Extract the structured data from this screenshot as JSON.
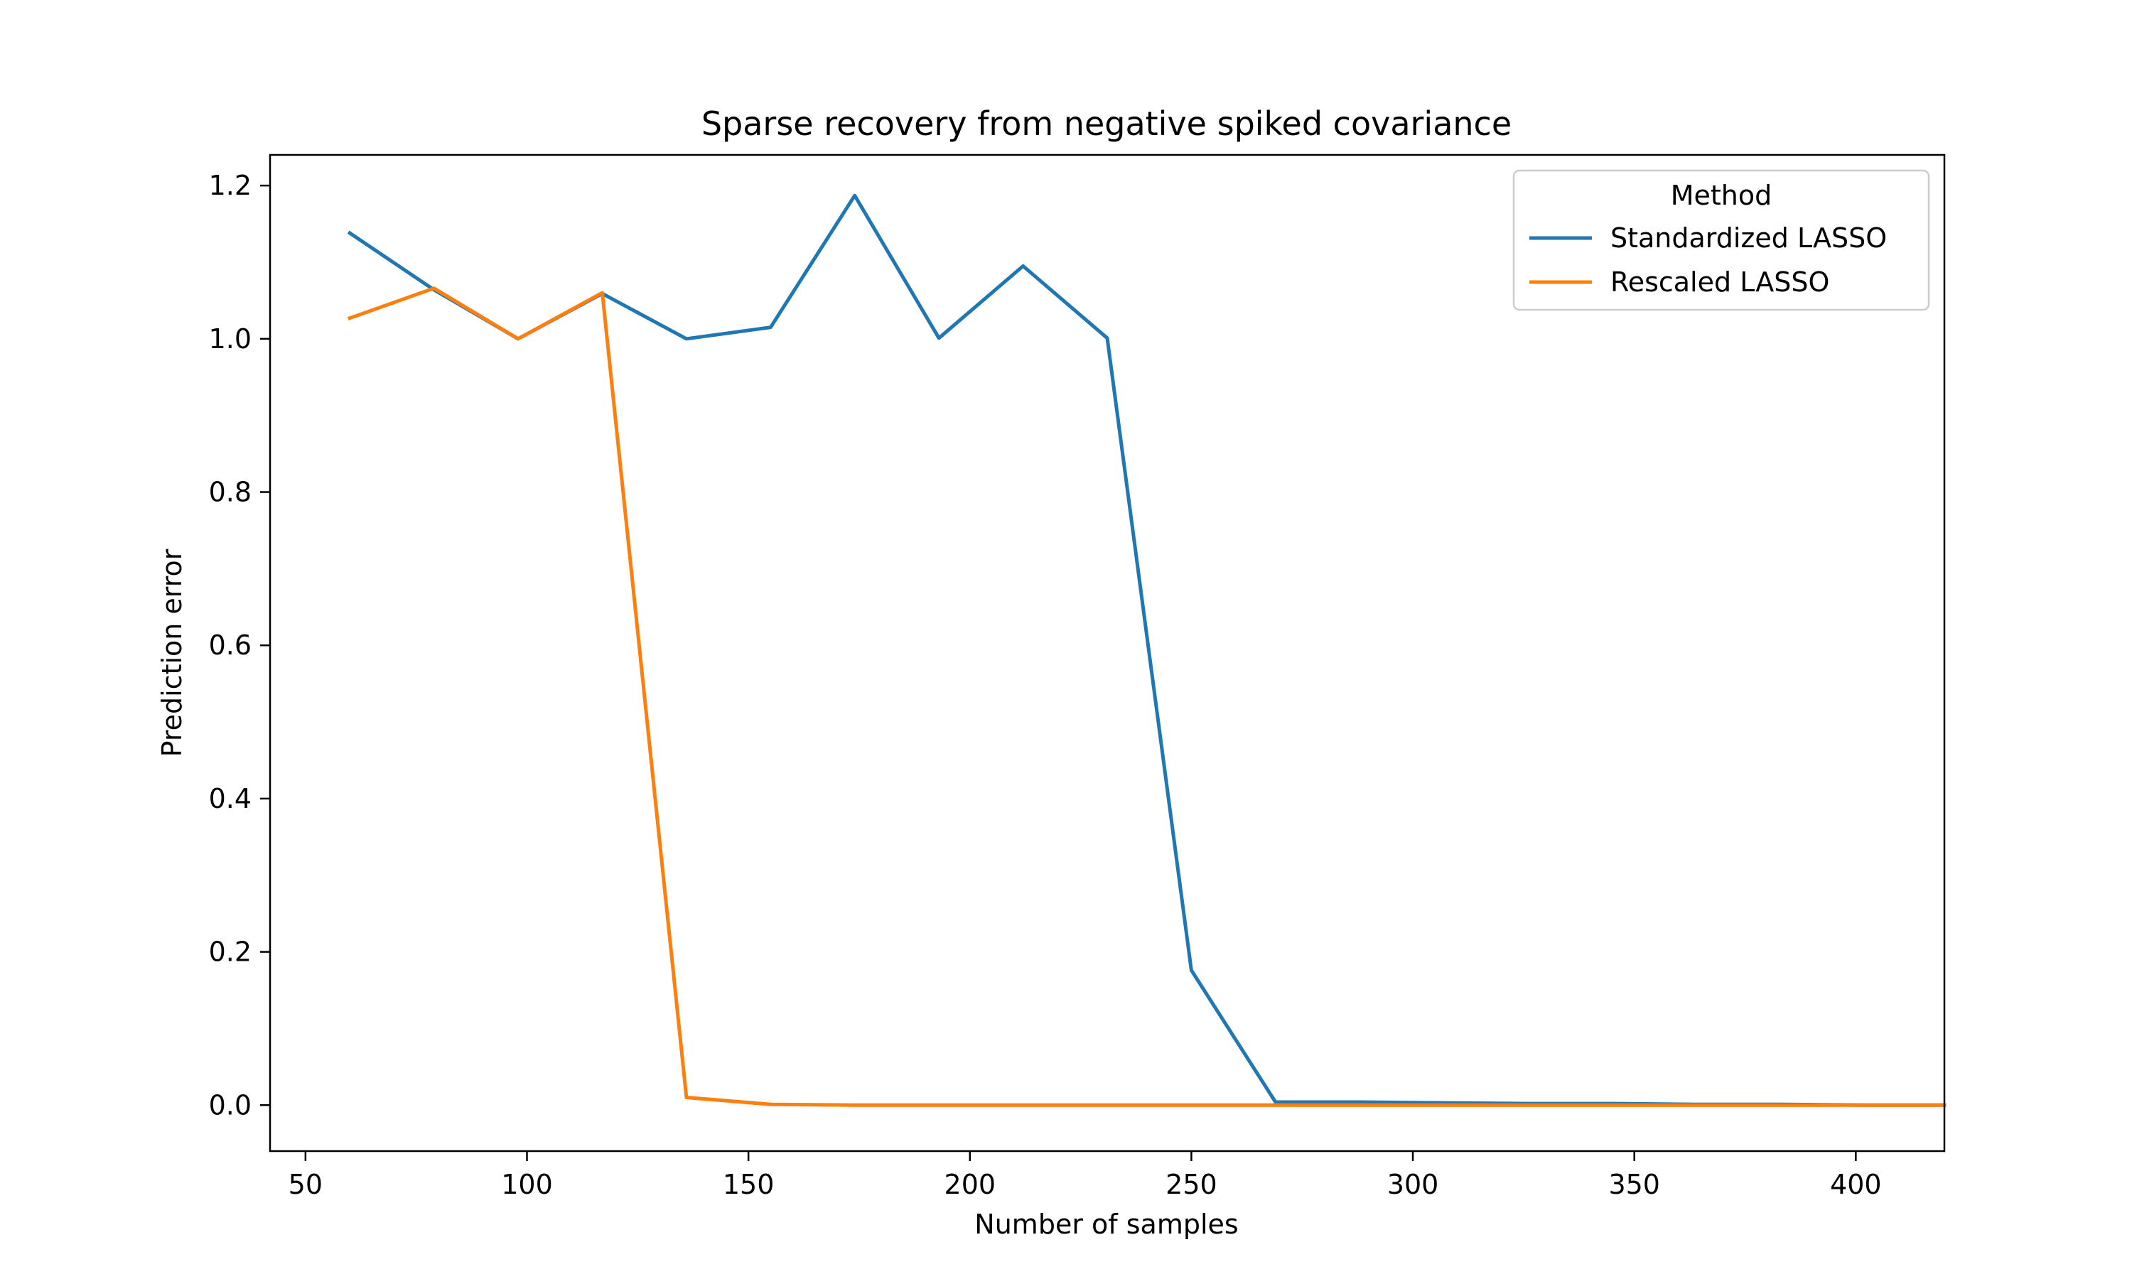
{
  "chart_data": {
    "type": "line",
    "title": "Sparse recovery from negative spiked covariance",
    "xlabel": "Number of samples",
    "ylabel": "Prediction error",
    "xlim": [
      42,
      420
    ],
    "ylim": [
      -0.06,
      1.24
    ],
    "xticks": [
      50,
      100,
      150,
      200,
      250,
      300,
      350,
      400
    ],
    "xtick_labels": [
      "50",
      "100",
      "150",
      "200",
      "250",
      "300",
      "350",
      "400"
    ],
    "yticks": [
      0.0,
      0.2,
      0.4,
      0.6,
      0.8,
      1.0,
      1.2
    ],
    "ytick_labels": [
      "0.0",
      "0.2",
      "0.4",
      "0.6",
      "0.8",
      "1.0",
      "1.2"
    ],
    "grid": false,
    "legend": {
      "title": "Method",
      "position": "top-right"
    },
    "x": [
      60,
      79,
      98,
      117,
      136,
      155,
      174,
      193,
      212,
      231,
      250,
      269,
      288,
      307,
      326,
      345,
      364,
      383,
      402,
      421
    ],
    "series": [
      {
        "name": "Standardized LASSO",
        "color": "#1f77b4",
        "values": [
          1.138,
          1.064,
          1.0,
          1.059,
          1.0,
          1.015,
          1.187,
          1.001,
          1.095,
          1.001,
          0.176,
          0.004,
          0.004,
          0.003,
          0.002,
          0.002,
          0.001,
          0.001,
          0.0,
          0.0
        ]
      },
      {
        "name": "Rescaled LASSO",
        "color": "#ff7f0e",
        "values": [
          1.027,
          1.066,
          1.0,
          1.06,
          0.01,
          0.001,
          0.0,
          0.0,
          0.0,
          0.0,
          0.0,
          0.0,
          0.0,
          0.0,
          0.0,
          0.0,
          0.0,
          0.0,
          0.0,
          0.0
        ]
      }
    ]
  }
}
